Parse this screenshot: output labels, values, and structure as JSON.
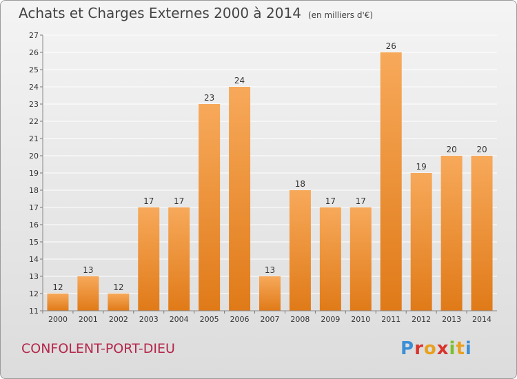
{
  "header": {
    "title": "Achats et Charges Externes 2000 à 2014",
    "unit": "(en milliers d'€)"
  },
  "footer": {
    "commune": "CONFOLENT-PORT-DIEU",
    "logo_text": "Proxiti"
  },
  "colors": {
    "bar_top": "#f7a95a",
    "bar_bottom": "#e07a18",
    "grid": "#ffffff",
    "text": "#333333",
    "commune": "#b5264b"
  },
  "chart_data": {
    "type": "bar",
    "title": "Achats et Charges Externes 2000 à 2014",
    "subtitle": "(en milliers d'€)",
    "categories": [
      "2000",
      "2001",
      "2002",
      "2003",
      "2004",
      "2005",
      "2006",
      "2007",
      "2008",
      "2009",
      "2010",
      "2011",
      "2012",
      "2013",
      "2014"
    ],
    "values": [
      12,
      13,
      12,
      17,
      17,
      23,
      24,
      13,
      18,
      17,
      17,
      26,
      19,
      20,
      20
    ],
    "value_labels": [
      "12",
      "13",
      "12",
      "17",
      "17",
      "23",
      "24",
      "13",
      "18",
      "17",
      "17",
      "26",
      "19",
      "20",
      "20"
    ],
    "ylim": [
      11,
      27
    ],
    "yticks": [
      "11",
      "12",
      "13",
      "14",
      "15",
      "16",
      "17",
      "18",
      "19",
      "20",
      "21",
      "22",
      "23",
      "24",
      "25",
      "26",
      "27"
    ],
    "grid": true,
    "legend": "none"
  }
}
